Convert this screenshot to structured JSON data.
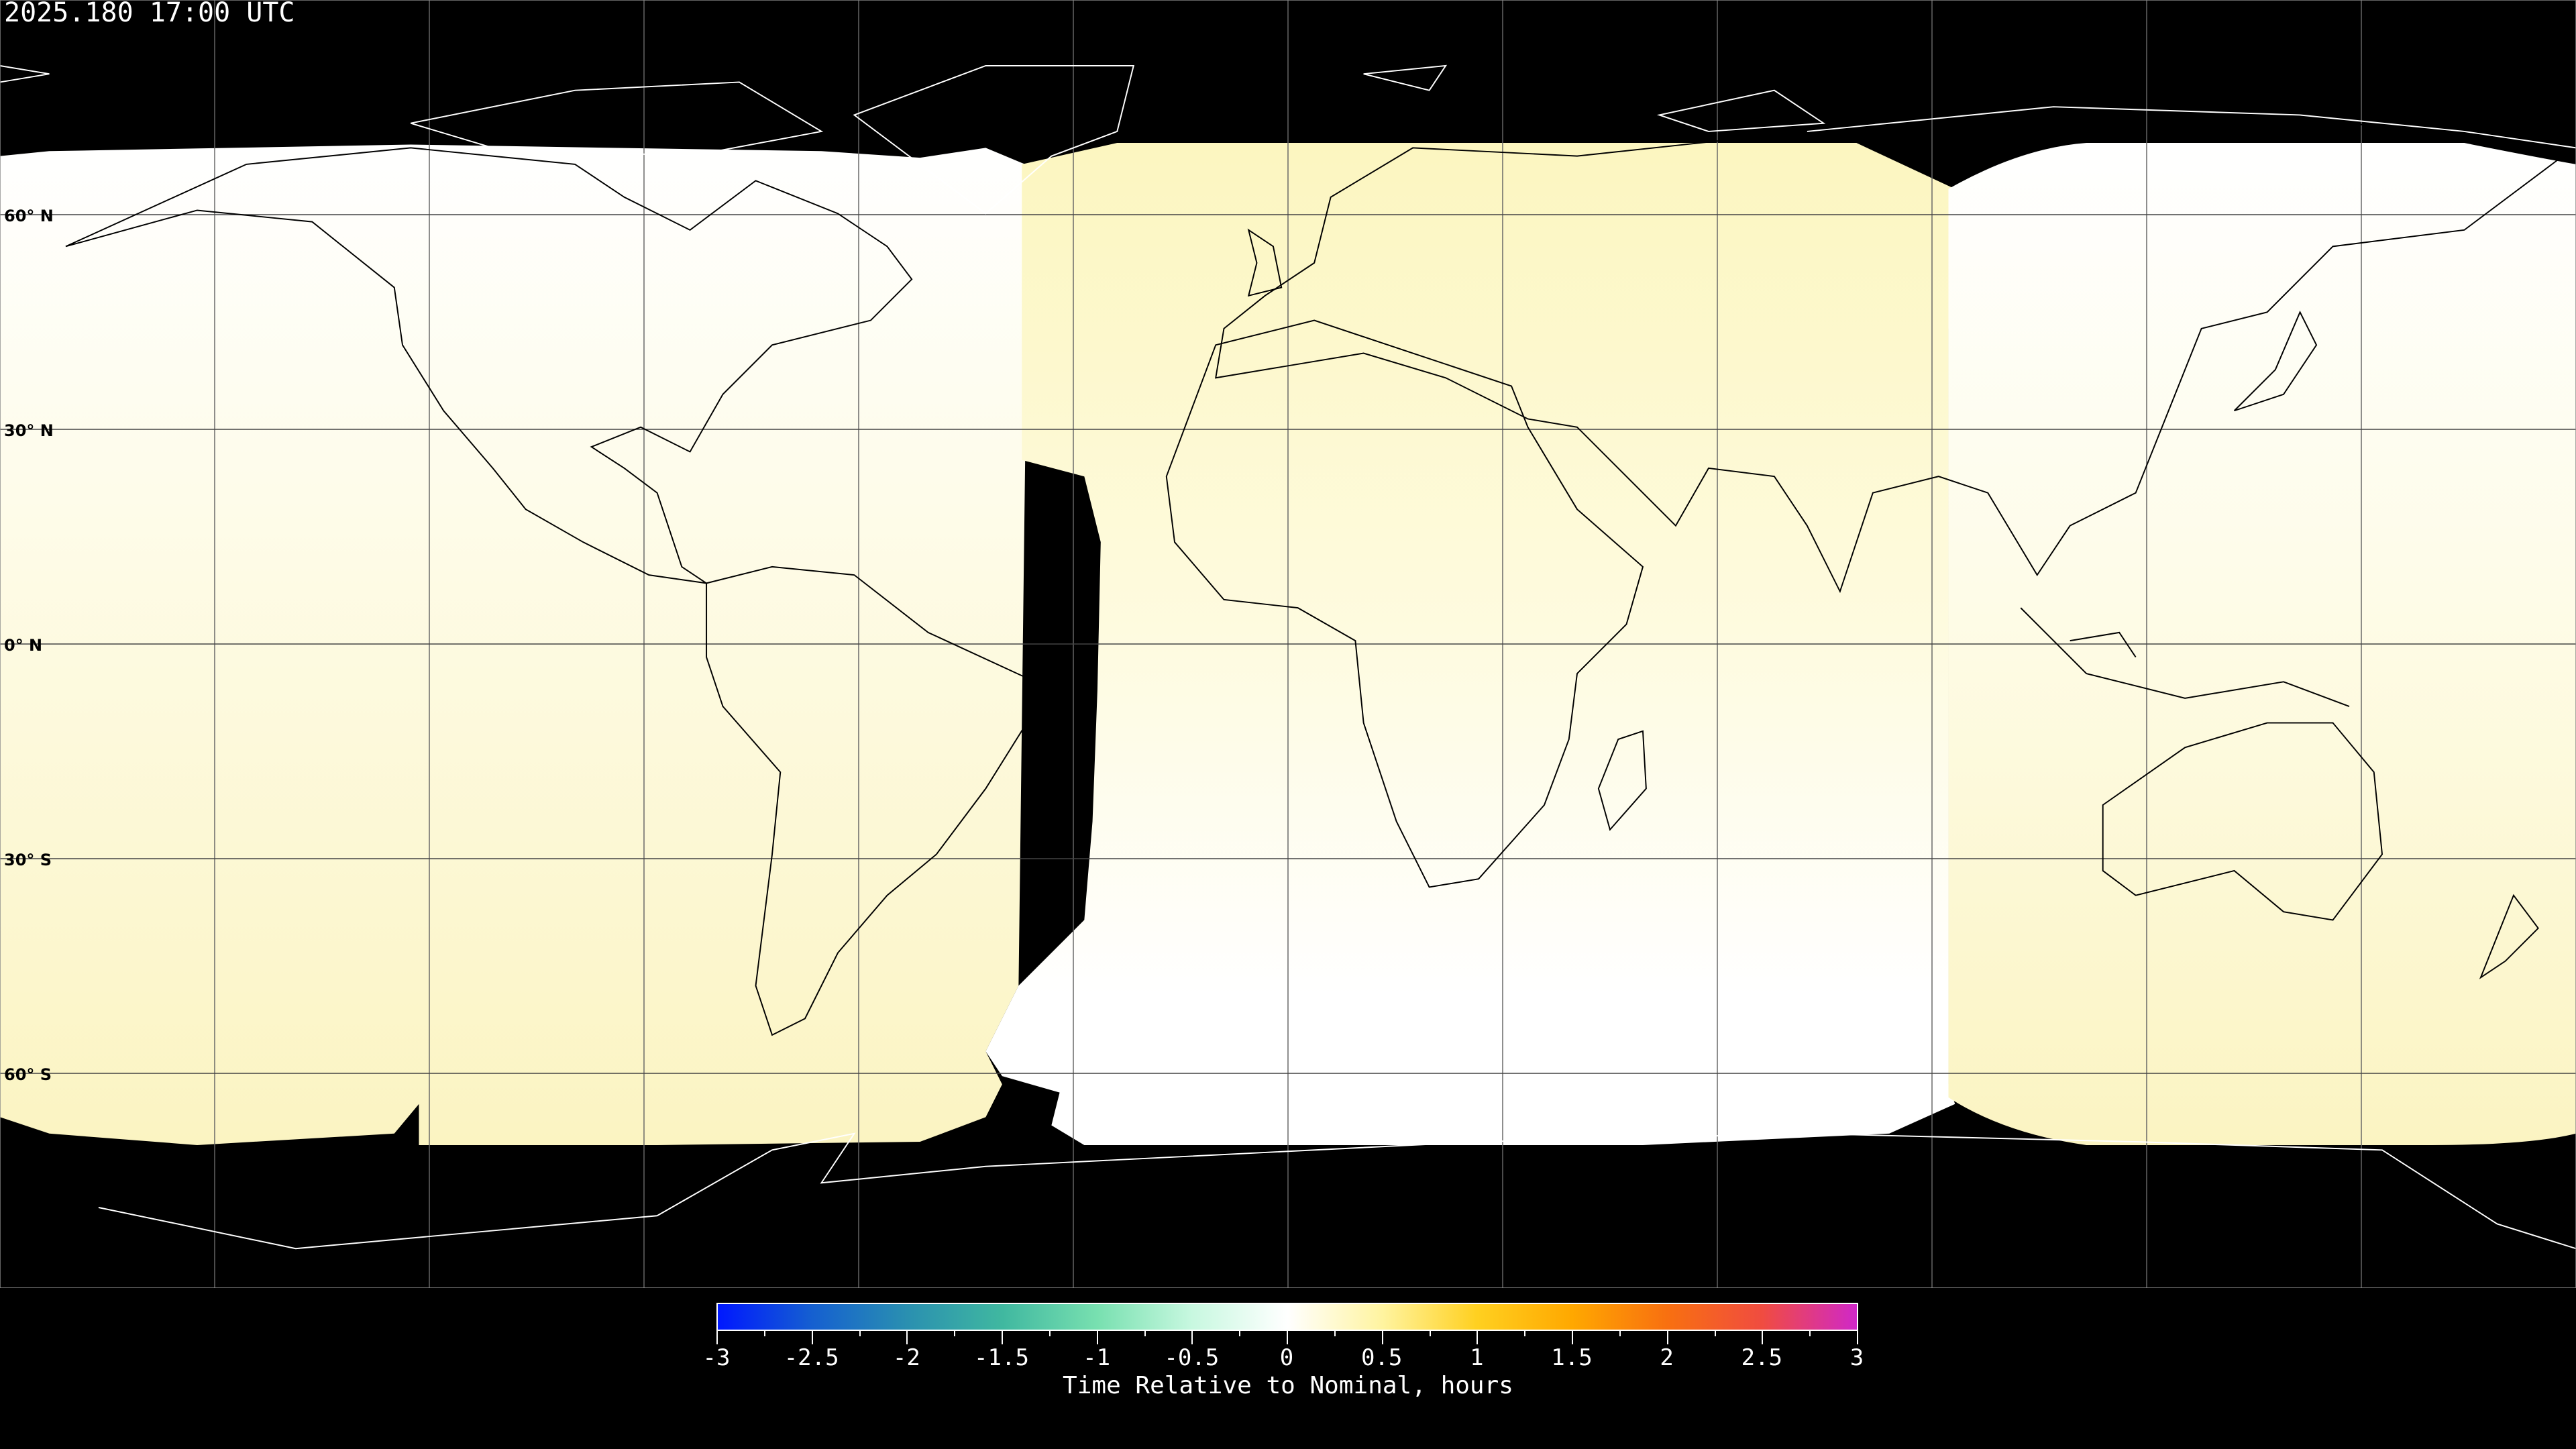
{
  "title": "2025.180 17:00 UTC",
  "lat_labels": [
    "60° N",
    "30° N",
    "0° N",
    "30° S",
    "60° S"
  ],
  "colorbar": {
    "title": "Time Relative to Nominal, hours",
    "range": [
      -3,
      3
    ],
    "tick_labels": [
      "-3",
      "-2.5",
      "-2",
      "-1.5",
      "-1",
      "-0.5",
      "0",
      "0.5",
      "1",
      "1.5",
      "2",
      "2.5",
      "3"
    ],
    "colors": [
      "#0018ff",
      "#1560d0",
      "#2a90b0",
      "#40b8a0",
      "#78e0b0",
      "#c8f8e0",
      "#ffffff",
      "#fff4a0",
      "#ffd020",
      "#ffa800",
      "#f87010",
      "#f04c40",
      "#d028c8"
    ]
  },
  "map": {
    "projection": "equirectangular",
    "graticule_step_deg": 30,
    "no_data_color": "#000000",
    "field_colors": {
      "white": "#ffffff",
      "pale_yellow": "#fcf6c4"
    }
  }
}
